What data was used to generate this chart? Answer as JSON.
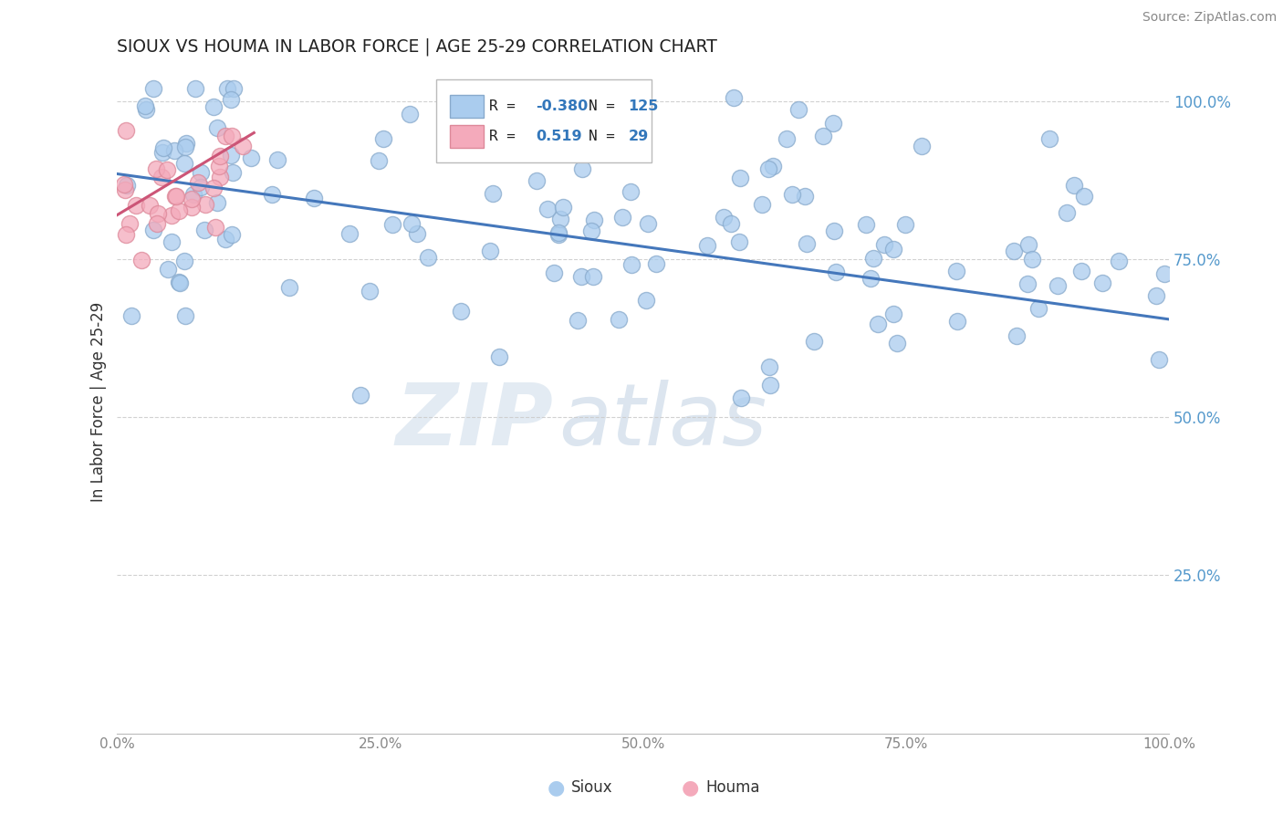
{
  "title": "SIOUX VS HOUMA IN LABOR FORCE | AGE 25-29 CORRELATION CHART",
  "source_text": "Source: ZipAtlas.com",
  "ylabel": "In Labor Force | Age 25-29",
  "watermark_zip": "ZIP",
  "watermark_atlas": "atlas",
  "sioux_R": -0.38,
  "sioux_N": 125,
  "houma_R": 0.519,
  "houma_N": 29,
  "sioux_color": "#aaccee",
  "sioux_edge": "#88aacc",
  "houma_color": "#f4aabb",
  "houma_edge": "#dd8899",
  "trend_sioux_color": "#4477bb",
  "trend_houma_color": "#cc5577",
  "background_color": "#ffffff",
  "xlim": [
    0.0,
    1.0
  ],
  "ylim": [
    0.0,
    1.05
  ],
  "xticks": [
    0.0,
    0.25,
    0.5,
    0.75,
    1.0
  ],
  "yticks": [
    0.25,
    0.5,
    0.75,
    1.0
  ],
  "xtick_labels": [
    "0.0%",
    "25.0%",
    "50.0%",
    "75.0%",
    "100.0%"
  ],
  "ytick_labels": [
    "25.0%",
    "50.0%",
    "75.0%",
    "100.0%"
  ],
  "legend_sioux_label": "Sioux",
  "legend_houma_label": "Houma"
}
